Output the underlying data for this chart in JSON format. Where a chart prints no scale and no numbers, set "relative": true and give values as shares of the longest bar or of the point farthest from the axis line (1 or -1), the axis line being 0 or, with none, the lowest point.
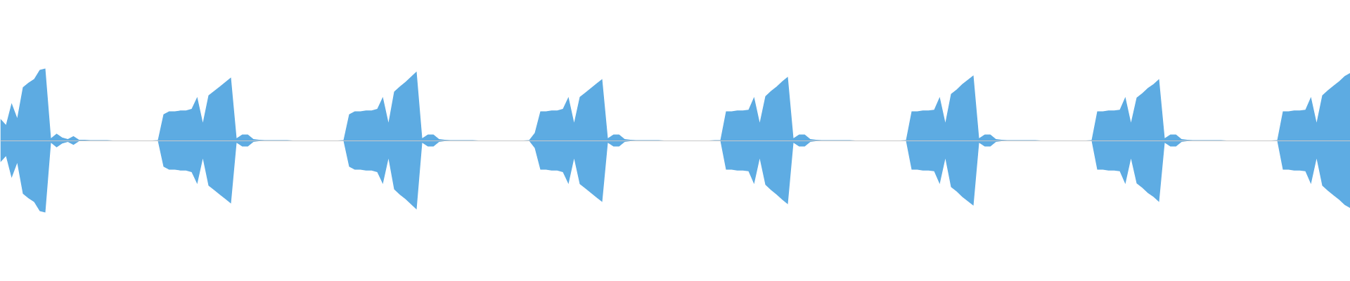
{
  "chart_data": {
    "type": "area",
    "relative": true,
    "grid": false,
    "categories": [
      null,
      null,
      null,
      null,
      null,
      null,
      null,
      null,
      null,
      null,
      null,
      null,
      null,
      null,
      null,
      null,
      null,
      null,
      null,
      null,
      null,
      null,
      null,
      null,
      null,
      null,
      null,
      null,
      null,
      null,
      null,
      null,
      null,
      null,
      null,
      null,
      null,
      null,
      null,
      null,
      null,
      null,
      null,
      null,
      null,
      null,
      null,
      null,
      null,
      null,
      null,
      null,
      null,
      null,
      null,
      null,
      null,
      null,
      null,
      null,
      null,
      null,
      null,
      null,
      null,
      null,
      null,
      null,
      null,
      null,
      null,
      null,
      null,
      null,
      null,
      null,
      null,
      null,
      null,
      null,
      null,
      null,
      null,
      null,
      null,
      null,
      null,
      null,
      null,
      null,
      null,
      null,
      null,
      null,
      null,
      null,
      null,
      null,
      null,
      null,
      null,
      null,
      null,
      null,
      null,
      null,
      null,
      null,
      null,
      null,
      null,
      null,
      null,
      null,
      null,
      null,
      null,
      null,
      null,
      null,
      null,
      null,
      null,
      null,
      null,
      null,
      null,
      null,
      null,
      null,
      null,
      null,
      null,
      null,
      null,
      null,
      null,
      null,
      null,
      null,
      null,
      null,
      null,
      null,
      null,
      null,
      null,
      null,
      null,
      null,
      null,
      null,
      null,
      null,
      null,
      null,
      null,
      null,
      null,
      null,
      null,
      null,
      null,
      null,
      null,
      null,
      null,
      null,
      null,
      null,
      null,
      null,
      null,
      null,
      null,
      null,
      null,
      null,
      null,
      null,
      null,
      null,
      null,
      null,
      null,
      null,
      null,
      null,
      null,
      null,
      null,
      null,
      null,
      null,
      null,
      null,
      null,
      null,
      null,
      null,
      null,
      null,
      null,
      null,
      null,
      null,
      null,
      null,
      null,
      null,
      null,
      null,
      null,
      null,
      null,
      null,
      null,
      null,
      null,
      null,
      null,
      null,
      null,
      null,
      null,
      null,
      null,
      null,
      null,
      null,
      null,
      null,
      null,
      null,
      null,
      null,
      null,
      null,
      null,
      null,
      null
    ],
    "series": [
      {
        "color": "#5dabe2",
        "values": [
          0.302,
          0.218,
          0.52,
          0.312,
          0.74,
          0.802,
          0.854,
          0.98,
          1,
          0.032,
          0.094,
          0.042,
          0.02,
          0.062,
          0.01,
          0.01,
          0.006,
          0.006,
          0.006,
          0.006,
          0,
          0,
          0,
          0,
          0,
          0,
          0,
          0,
          0.006,
          0.364,
          0.406,
          0.406,
          0.416,
          0.416,
          0.438,
          0.604,
          0.25,
          0.626,
          0.688,
          0.75,
          0.812,
          0.876,
          0.032,
          0.084,
          0.084,
          0.02,
          0.01,
          0.006,
          0.006,
          0.006,
          0.006,
          0.006,
          0,
          0,
          0,
          0,
          0,
          0,
          0,
          0,
          0,
          0.006,
          0.364,
          0.406,
          0.406,
          0.416,
          0.416,
          0.438,
          0.604,
          0.25,
          0.678,
          0.75,
          0.812,
          0.886,
          0.958,
          0.032,
          0.084,
          0.084,
          0.02,
          0.01,
          0.006,
          0.006,
          0.006,
          0.006,
          0.006,
          0,
          0,
          0,
          0,
          0,
          0,
          0,
          0,
          0,
          0.006,
          0.104,
          0.406,
          0.406,
          0.416,
          0.416,
          0.438,
          0.604,
          0.25,
          0.604,
          0.666,
          0.73,
          0.792,
          0.854,
          0.032,
          0.084,
          0.084,
          0.02,
          0.01,
          0.006,
          0.006,
          0.006,
          0.006,
          0.006,
          0,
          0,
          0,
          0,
          0,
          0,
          0,
          0,
          0,
          0.006,
          0.006,
          0.406,
          0.406,
          0.416,
          0.416,
          0.428,
          0.604,
          0.25,
          0.614,
          0.688,
          0.75,
          0.822,
          0.886,
          0.032,
          0.084,
          0.084,
          0.02,
          0.01,
          0.006,
          0.006,
          0.006,
          0.006,
          0.006,
          0.006,
          0,
          0,
          0,
          0,
          0,
          0,
          0,
          0,
          0,
          0.006,
          0.406,
          0.406,
          0.416,
          0.416,
          0.428,
          0.604,
          0.25,
          0.646,
          0.708,
          0.782,
          0.844,
          0.906,
          0.032,
          0.084,
          0.084,
          0.02,
          0.01,
          0.006,
          0.006,
          0.006,
          0.006,
          0.006,
          0.006,
          0,
          0,
          0,
          0,
          0,
          0,
          0,
          0,
          0,
          0.006,
          0.406,
          0.406,
          0.416,
          0.416,
          0.428,
          0.604,
          0.25,
          0.594,
          0.656,
          0.73,
          0.782,
          0.854,
          0.032,
          0.084,
          0.084,
          0.02,
          0.01,
          0.006,
          0.006,
          0.006,
          0.006,
          0.006,
          0.006,
          0,
          0,
          0,
          0,
          0,
          0,
          0,
          0,
          0,
          0.006,
          0.406,
          0.406,
          0.416,
          0.416,
          0.428,
          0.604,
          0.25,
          0.626,
          0.698,
          0.76,
          0.822,
          0.896,
          0.938
        ]
      },
      {
        "color": "#5eace3",
        "values": [
          -0.302,
          -0.218,
          -0.52,
          -0.312,
          -0.74,
          -0.802,
          -0.854,
          -0.98,
          -1,
          -0.032,
          -0.094,
          -0.042,
          -0.02,
          -0.062,
          -0.01,
          -0.01,
          -0.006,
          -0.006,
          -0.006,
          -0.006,
          0,
          0,
          0,
          0,
          0,
          0,
          0,
          0,
          -0.006,
          -0.364,
          -0.406,
          -0.406,
          -0.416,
          -0.416,
          -0.438,
          -0.604,
          -0.25,
          -0.626,
          -0.688,
          -0.75,
          -0.812,
          -0.876,
          -0.032,
          -0.084,
          -0.084,
          -0.02,
          -0.01,
          -0.006,
          -0.006,
          -0.006,
          -0.006,
          -0.006,
          0,
          0,
          0,
          0,
          0,
          0,
          0,
          0,
          0,
          -0.006,
          -0.364,
          -0.406,
          -0.406,
          -0.416,
          -0.416,
          -0.438,
          -0.604,
          -0.25,
          -0.678,
          -0.75,
          -0.812,
          -0.886,
          -0.958,
          -0.032,
          -0.084,
          -0.084,
          -0.02,
          -0.01,
          -0.006,
          -0.006,
          -0.006,
          -0.006,
          -0.006,
          0,
          0,
          0,
          0,
          0,
          0,
          0,
          0,
          0,
          -0.006,
          -0.104,
          -0.406,
          -0.406,
          -0.416,
          -0.416,
          -0.438,
          -0.604,
          -0.25,
          -0.604,
          -0.666,
          -0.73,
          -0.792,
          -0.854,
          -0.032,
          -0.084,
          -0.084,
          -0.02,
          -0.01,
          -0.006,
          -0.006,
          -0.006,
          -0.006,
          -0.006,
          0,
          0,
          0,
          0,
          0,
          0,
          0,
          0,
          0,
          -0.006,
          -0.006,
          -0.406,
          -0.406,
          -0.416,
          -0.416,
          -0.428,
          -0.604,
          -0.25,
          -0.614,
          -0.688,
          -0.75,
          -0.822,
          -0.886,
          -0.032,
          -0.084,
          -0.084,
          -0.02,
          -0.01,
          -0.006,
          -0.006,
          -0.006,
          -0.006,
          -0.006,
          -0.006,
          0,
          0,
          0,
          0,
          0,
          0,
          0,
          0,
          0,
          -0.006,
          -0.406,
          -0.406,
          -0.416,
          -0.416,
          -0.428,
          -0.604,
          -0.25,
          -0.646,
          -0.708,
          -0.782,
          -0.844,
          -0.906,
          -0.032,
          -0.084,
          -0.084,
          -0.02,
          -0.01,
          -0.006,
          -0.006,
          -0.006,
          -0.006,
          -0.006,
          -0.006,
          0,
          0,
          0,
          0,
          0,
          0,
          0,
          0,
          0,
          -0.006,
          -0.406,
          -0.406,
          -0.416,
          -0.416,
          -0.428,
          -0.604,
          -0.25,
          -0.594,
          -0.656,
          -0.73,
          -0.782,
          -0.854,
          -0.032,
          -0.084,
          -0.084,
          -0.02,
          -0.01,
          -0.006,
          -0.006,
          -0.006,
          -0.006,
          -0.006,
          -0.006,
          0,
          0,
          0,
          0,
          0,
          0,
          0,
          0,
          0,
          -0.006,
          -0.406,
          -0.406,
          -0.416,
          -0.416,
          -0.428,
          -0.604,
          -0.25,
          -0.626,
          -0.698,
          -0.76,
          -0.822,
          -0.896,
          -0.938
        ]
      }
    ]
  }
}
